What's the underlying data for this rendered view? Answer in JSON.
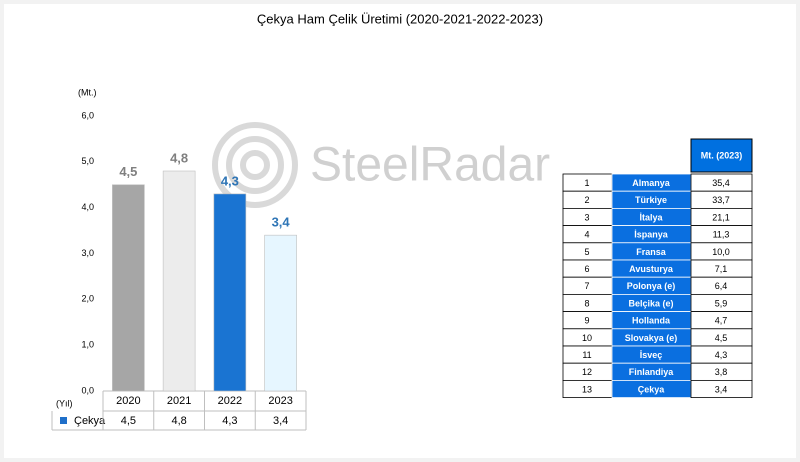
{
  "chart_data": {
    "type": "bar",
    "title": "Çekya Ham Çelik Üretimi (2020-2021-2022-2023)",
    "y_label": "(Mt.)",
    "x_label": "(Yıl)",
    "watermark": "SteelRadar",
    "categories": [
      "2020",
      "2021",
      "2022",
      "2023"
    ],
    "series": [
      {
        "name": "Çekya",
        "color": "#1f6fc9",
        "values": [
          4.5,
          4.8,
          4.3,
          3.4
        ],
        "value_labels": [
          "4,5",
          "4,8",
          "4,3",
          "3,4"
        ],
        "colors": [
          "#a6a6a6",
          "#ececec",
          "#1a74d2",
          "#e6f6ff"
        ],
        "label_colors": [
          "#7f7f7f",
          "#7f7f7f",
          "#2e75b6",
          "#2e75b6"
        ]
      }
    ],
    "ylim": [
      0,
      6
    ],
    "yticks": [
      {
        "value": 0,
        "label": "0,0"
      },
      {
        "value": 1,
        "label": "1,0"
      },
      {
        "value": 2,
        "label": "2,0"
      },
      {
        "value": 3,
        "label": "3,0"
      },
      {
        "value": 4,
        "label": "4,0"
      },
      {
        "value": 5,
        "label": "5,0"
      },
      {
        "value": 6,
        "label": "6,0"
      }
    ],
    "grid": false
  },
  "table": {
    "header": "Mt. (2023)",
    "rows": [
      [
        "1",
        "Almanya",
        "35,4"
      ],
      [
        "2",
        "Türkiye",
        "33,7"
      ],
      [
        "3",
        "İtalya",
        "21,1"
      ],
      [
        "4",
        "İspanya",
        "11,3"
      ],
      [
        "5",
        "Fransa",
        "10,0"
      ],
      [
        "6",
        "Avusturya",
        "7,1"
      ],
      [
        "7",
        "Polonya (e)",
        "6,4"
      ],
      [
        "8",
        "Belçika (e)",
        "5,9"
      ],
      [
        "9",
        "Hollanda",
        "4,7"
      ],
      [
        "10",
        "Slovakya (e)",
        "4,5"
      ],
      [
        "11",
        "İsveç",
        "4,3"
      ],
      [
        "12",
        "Finlandiya",
        "3,8"
      ],
      [
        "13",
        "Çekya",
        "3,4"
      ]
    ]
  }
}
